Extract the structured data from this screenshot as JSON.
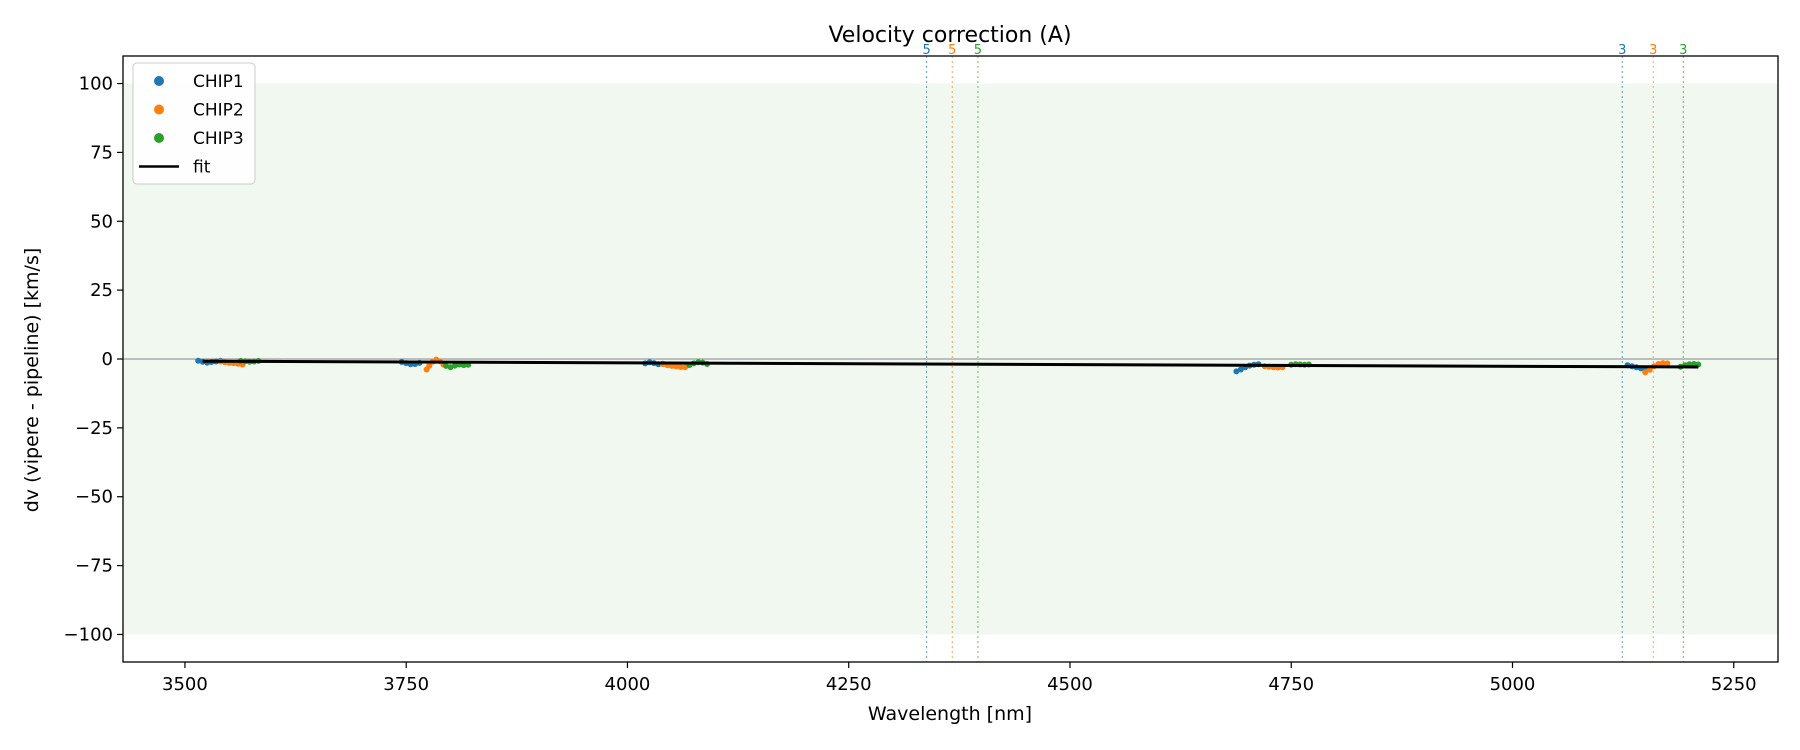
{
  "chart_data": {
    "type": "scatter",
    "title": "Velocity correction (A)",
    "xlabel": "Wavelength [nm]",
    "ylabel": "dv (vipere - pipeline) [km/s]",
    "xlim": [
      3430,
      5300
    ],
    "ylim": [
      -110,
      110
    ],
    "xticks": [
      3500,
      3750,
      4000,
      4250,
      4500,
      4750,
      5000,
      5250
    ],
    "yticks": [
      100,
      75,
      50,
      25,
      0,
      -25,
      -50,
      -75,
      -100
    ],
    "xtick_labels": [
      "3500",
      "3750",
      "4000",
      "4250",
      "4500",
      "4750",
      "5000",
      "5250"
    ],
    "ytick_labels": [
      "100",
      "75",
      "50",
      "25",
      "0",
      "−25",
      "−50",
      "−75",
      "−100"
    ],
    "band": [
      -100,
      100
    ],
    "band_color": "#eaf5ea",
    "zero_line": 0,
    "legend_position": "top-left",
    "series": [
      {
        "name": "CHIP1",
        "color": "#1f77b4",
        "points": [
          [
            3515,
            -0.6
          ],
          [
            3520,
            -1.0
          ],
          [
            3525,
            -1.3
          ],
          [
            3530,
            -1.1
          ],
          [
            3535,
            -0.9
          ],
          [
            3540,
            -0.6
          ],
          [
            3745,
            -1.1
          ],
          [
            3750,
            -1.5
          ],
          [
            3755,
            -1.9
          ],
          [
            3760,
            -1.8
          ],
          [
            3765,
            -1.4
          ],
          [
            4020,
            -1.6
          ],
          [
            4025,
            -1.2
          ],
          [
            4030,
            -1.5
          ],
          [
            4035,
            -1.9
          ],
          [
            4040,
            -1.7
          ],
          [
            4688,
            -4.5
          ],
          [
            4693,
            -3.8
          ],
          [
            4698,
            -3.0
          ],
          [
            4703,
            -2.4
          ],
          [
            4708,
            -2.1
          ],
          [
            4713,
            -1.9
          ],
          [
            5130,
            -2.3
          ],
          [
            5135,
            -2.6
          ],
          [
            5140,
            -3.0
          ],
          [
            5145,
            -3.4
          ],
          [
            5150,
            -4.0
          ]
        ]
      },
      {
        "name": "CHIP2",
        "color": "#ff7f0e",
        "points": [
          [
            3540,
            -0.9
          ],
          [
            3545,
            -1.2
          ],
          [
            3550,
            -1.4
          ],
          [
            3555,
            -1.5
          ],
          [
            3560,
            -1.7
          ],
          [
            3565,
            -2.0
          ],
          [
            3773,
            -3.8
          ],
          [
            3776,
            -2.5
          ],
          [
            3780,
            -1.0
          ],
          [
            3784,
            -0.2
          ],
          [
            3788,
            -0.8
          ],
          [
            3792,
            -2.0
          ],
          [
            4040,
            -1.8
          ],
          [
            4045,
            -2.2
          ],
          [
            4050,
            -2.5
          ],
          [
            4055,
            -2.7
          ],
          [
            4060,
            -2.9
          ],
          [
            4065,
            -3.0
          ],
          [
            4720,
            -2.6
          ],
          [
            4725,
            -2.8
          ],
          [
            4730,
            -3.0
          ],
          [
            4735,
            -3.1
          ],
          [
            4740,
            -3.0
          ],
          [
            5150,
            -4.8
          ],
          [
            5155,
            -3.9
          ],
          [
            5160,
            -2.6
          ],
          [
            5165,
            -1.8
          ],
          [
            5170,
            -1.5
          ],
          [
            5175,
            -1.6
          ]
        ]
      },
      {
        "name": "CHIP3",
        "color": "#2ca02c",
        "points": [
          [
            3563,
            -0.7
          ],
          [
            3568,
            -0.8
          ],
          [
            3573,
            -1.0
          ],
          [
            3578,
            -0.9
          ],
          [
            3583,
            -0.7
          ],
          [
            3795,
            -2.5
          ],
          [
            3800,
            -3.0
          ],
          [
            3805,
            -2.4
          ],
          [
            3810,
            -2.0
          ],
          [
            3815,
            -2.2
          ],
          [
            3820,
            -2.1
          ],
          [
            4070,
            -2.2
          ],
          [
            4075,
            -1.6
          ],
          [
            4080,
            -1.2
          ],
          [
            4085,
            -1.3
          ],
          [
            4090,
            -1.8
          ],
          [
            4750,
            -2.1
          ],
          [
            4755,
            -1.9
          ],
          [
            4760,
            -2.0
          ],
          [
            4765,
            -2.1
          ],
          [
            4770,
            -2.0
          ],
          [
            5190,
            -2.8
          ],
          [
            5195,
            -2.3
          ],
          [
            5200,
            -1.9
          ],
          [
            5205,
            -1.8
          ],
          [
            5210,
            -2.0
          ]
        ]
      }
    ],
    "fit": {
      "name": "fit",
      "color": "#000000",
      "points": [
        [
          3520,
          -0.8
        ],
        [
          5210,
          -2.9
        ]
      ]
    },
    "order_markers": [
      {
        "x": 4338,
        "label": "5",
        "color": "#1f77b4"
      },
      {
        "x": 4367,
        "label": "5",
        "color": "#ff7f0e"
      },
      {
        "x": 4396,
        "label": "5",
        "color": "#2ca02c"
      },
      {
        "x": 5124,
        "label": "3",
        "color": "#1f77b4"
      },
      {
        "x": 5159,
        "label": "3",
        "color": "#ff7f0e"
      },
      {
        "x": 5193,
        "label": "3",
        "color": "#2ca02c"
      }
    ],
    "legend": [
      {
        "label": "CHIP1",
        "kind": "marker",
        "color": "#1f77b4"
      },
      {
        "label": "CHIP2",
        "kind": "marker",
        "color": "#ff7f0e"
      },
      {
        "label": "CHIP3",
        "kind": "marker",
        "color": "#2ca02c"
      },
      {
        "label": "fit",
        "kind": "line",
        "color": "#000000"
      }
    ]
  }
}
